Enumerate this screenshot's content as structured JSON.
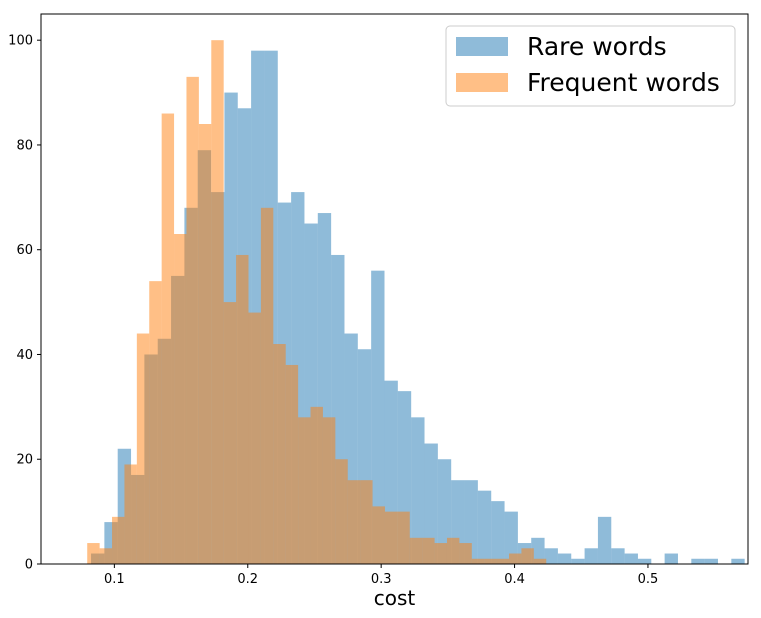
{
  "chart_data": {
    "type": "bar",
    "subtype": "overlaid-histogram",
    "title": "",
    "xlabel": "cost",
    "ylabel": "",
    "xlim": [
      0.045,
      0.575
    ],
    "ylim": [
      0,
      105
    ],
    "xticks": [
      0.1,
      0.2,
      0.3,
      0.4,
      0.5
    ],
    "xtick_labels": [
      "0.1",
      "0.2",
      "0.3",
      "0.4",
      "0.5"
    ],
    "yticks": [
      0,
      20,
      40,
      60,
      80,
      100
    ],
    "ytick_labels": [
      "0",
      "20",
      "40",
      "60",
      "80",
      "100"
    ],
    "grid": false,
    "legend_position": "top-right",
    "series": [
      {
        "name": "Rare words",
        "color": "#1f77b4",
        "opacity": 0.5,
        "bin_width": 0.01,
        "bins": [
          [
            0.0875,
            2
          ],
          [
            0.0975,
            8
          ],
          [
            0.1075,
            22
          ],
          [
            0.1175,
            17
          ],
          [
            0.1275,
            40
          ],
          [
            0.1375,
            43
          ],
          [
            0.1475,
            55
          ],
          [
            0.1575,
            68
          ],
          [
            0.1675,
            79
          ],
          [
            0.1775,
            71
          ],
          [
            0.1875,
            90
          ],
          [
            0.1975,
            87
          ],
          [
            0.2075,
            98
          ],
          [
            0.2175,
            98
          ],
          [
            0.2275,
            69
          ],
          [
            0.2375,
            71
          ],
          [
            0.2475,
            65
          ],
          [
            0.2575,
            67
          ],
          [
            0.2675,
            59
          ],
          [
            0.2775,
            44
          ],
          [
            0.2875,
            41
          ],
          [
            0.2975,
            56
          ],
          [
            0.3075,
            35
          ],
          [
            0.3175,
            33
          ],
          [
            0.3275,
            28
          ],
          [
            0.3375,
            23
          ],
          [
            0.3475,
            20
          ],
          [
            0.3575,
            16
          ],
          [
            0.3675,
            16
          ],
          [
            0.3775,
            14
          ],
          [
            0.3875,
            12
          ],
          [
            0.3975,
            10
          ],
          [
            0.4075,
            4
          ],
          [
            0.4175,
            5
          ],
          [
            0.4275,
            3
          ],
          [
            0.4375,
            2
          ],
          [
            0.4475,
            1
          ],
          [
            0.4575,
            3
          ],
          [
            0.4675,
            9
          ],
          [
            0.4775,
            3
          ],
          [
            0.4875,
            2
          ],
          [
            0.4975,
            1
          ],
          [
            0.5175,
            2
          ],
          [
            0.5375,
            1
          ],
          [
            0.5475,
            1
          ],
          [
            0.5675,
            1
          ]
        ]
      },
      {
        "name": "Frequent words",
        "color": "#ff7f0e",
        "opacity": 0.5,
        "bin_width": 0.0093,
        "bins": [
          [
            0.0843,
            4
          ],
          [
            0.0936,
            3
          ],
          [
            0.1029,
            9
          ],
          [
            0.1122,
            19
          ],
          [
            0.1215,
            44
          ],
          [
            0.1308,
            54
          ],
          [
            0.1401,
            86
          ],
          [
            0.1494,
            63
          ],
          [
            0.1587,
            93
          ],
          [
            0.168,
            84
          ],
          [
            0.1773,
            100
          ],
          [
            0.1866,
            50
          ],
          [
            0.1959,
            59
          ],
          [
            0.2052,
            48
          ],
          [
            0.2145,
            68
          ],
          [
            0.2238,
            42
          ],
          [
            0.2331,
            38
          ],
          [
            0.2424,
            28
          ],
          [
            0.2517,
            30
          ],
          [
            0.261,
            28
          ],
          [
            0.2703,
            20
          ],
          [
            0.2796,
            16
          ],
          [
            0.2889,
            16
          ],
          [
            0.2982,
            11
          ],
          [
            0.3075,
            10
          ],
          [
            0.3168,
            10
          ],
          [
            0.3261,
            5
          ],
          [
            0.3354,
            5
          ],
          [
            0.3447,
            4
          ],
          [
            0.354,
            5
          ],
          [
            0.3633,
            4
          ],
          [
            0.3726,
            1
          ],
          [
            0.3819,
            1
          ],
          [
            0.3912,
            1
          ],
          [
            0.4005,
            2
          ],
          [
            0.4098,
            3
          ],
          [
            0.4191,
            1
          ]
        ]
      }
    ]
  }
}
